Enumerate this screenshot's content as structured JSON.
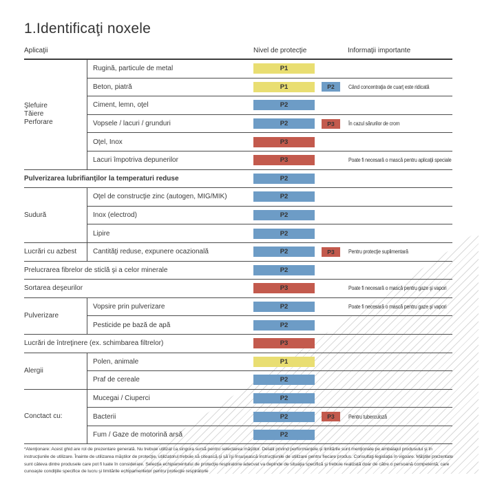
{
  "page": {
    "title": "1.Identificaţi noxele",
    "footnote": "*Atenţionare: Acest ghid are rol de prezentare generală. Nu trebuie utilizat ca singura sursă pentru selectarea măştilor. Detalii privind performanţele şi limitările sunt menţionate pe ambalajul produsului şi în instrucţiunile de utilizare. Înainte de utilizarea măştilor de protecţie, utilizatorul trebuie să citească şi să îşi însuşească instrucţiunile de utilizare pentru fiecare produs. Consultaţi legislaţia în vigoare. Măştile prezentate sunt câteva dintre produsele care pot fi luate în considerare. Selecţia echipamentului de protecţie respiratorie adecvat va depinde de situaţia specifică şi trebuie realizată doar de către o persoană competentă, care cunoaşte condiţiile specifice de lucru şi limitările echipamentelor pentru protecţie respiratorie"
  },
  "header": {
    "applications": "Aplicaţii",
    "protection": "Nivel de protecţie",
    "info": "Informaţii importante"
  },
  "colors": {
    "P1": "#e9de72",
    "P2": "#6d9cc6",
    "P3": "#c35a4d"
  },
  "table": {
    "groups": [
      {
        "category": "Şlefuire\nTăiere\nPerforare",
        "rows": [
          {
            "label": "Rugină, particule de metal",
            "level": "P1",
            "badge": null,
            "info": null
          },
          {
            "label": "Beton, piatră",
            "level": "P1",
            "badge": "P2",
            "info": "Când concentraţia de cuarţ este ridicată"
          },
          {
            "label": "Ciment, lemn, oţel",
            "level": "P2",
            "badge": null,
            "info": null
          },
          {
            "label": "Vopsele / lacuri / grunduri",
            "level": "P2",
            "badge": "P3",
            "info": "În cazul sărurilor de crom"
          },
          {
            "label": "Oţel, Inox",
            "level": "P3",
            "badge": null,
            "info": null
          },
          {
            "label": "Lacuri împotriva depunerilor",
            "level": "P3",
            "badge": null,
            "info": "Poate fi necesară o mască pentru aplicaţii speciale"
          }
        ]
      },
      {
        "category": null,
        "bold": true,
        "rows": [
          {
            "label": "Pulverizarea lubrifianţilor la temperaturi reduse",
            "level": "P2",
            "badge": null,
            "info": null
          }
        ]
      },
      {
        "category": "Sudură",
        "rows": [
          {
            "label": "Oţel de construcţie zinc (autogen, MIG/MIK)",
            "level": "P2",
            "badge": null,
            "info": null
          },
          {
            "label": "Inox (electrod)",
            "level": "P2",
            "badge": null,
            "info": null
          },
          {
            "label": "Lipire",
            "level": "P2",
            "badge": null,
            "info": null
          }
        ]
      },
      {
        "category": "Lucrări cu azbest",
        "rows": [
          {
            "label": "Cantităţi reduse, expunere ocazională",
            "level": "P2",
            "badge": "P3",
            "info": "Pentru protecţie suplimentară"
          }
        ]
      },
      {
        "category": null,
        "rows": [
          {
            "label": "Prelucrarea fibrelor de sticlă şi a celor minerale",
            "level": "P2",
            "badge": null,
            "info": null
          }
        ]
      },
      {
        "category": null,
        "rows": [
          {
            "label": "Sortarea deşeurilor",
            "level": "P3",
            "badge": null,
            "info": "Poate fi necesară o mască pentru gaze şi vapori"
          }
        ]
      },
      {
        "category": "Pulverizare",
        "rows": [
          {
            "label": "Vopsire prin pulverizare",
            "level": "P2",
            "badge": null,
            "info": "Poate fi necesară o mască pentru gaze şi vapori"
          },
          {
            "label": "Pesticide pe bază de apă",
            "level": "P2",
            "badge": null,
            "info": null
          }
        ]
      },
      {
        "category": null,
        "rows": [
          {
            "label": "Lucrări de întreţinere (ex. schimbarea filtrelor)",
            "level": "P3",
            "badge": null,
            "info": null
          }
        ]
      },
      {
        "category": "Alergii",
        "rows": [
          {
            "label": "Polen, animale",
            "level": "P1",
            "badge": null,
            "info": null
          },
          {
            "label": "Praf de cereale",
            "level": "P2",
            "badge": null,
            "info": null
          }
        ]
      },
      {
        "category": "Conctact cu:",
        "rows": [
          {
            "label": "Mucegai / Ciuperci",
            "level": "P2",
            "badge": null,
            "info": null
          },
          {
            "label": "Bacterii",
            "level": "P2",
            "badge": "P3",
            "info": "Pentru tuberculoză"
          },
          {
            "label": "Fum / Gaze de motorină arsă",
            "level": "P2",
            "badge": null,
            "info": null
          }
        ]
      }
    ]
  }
}
